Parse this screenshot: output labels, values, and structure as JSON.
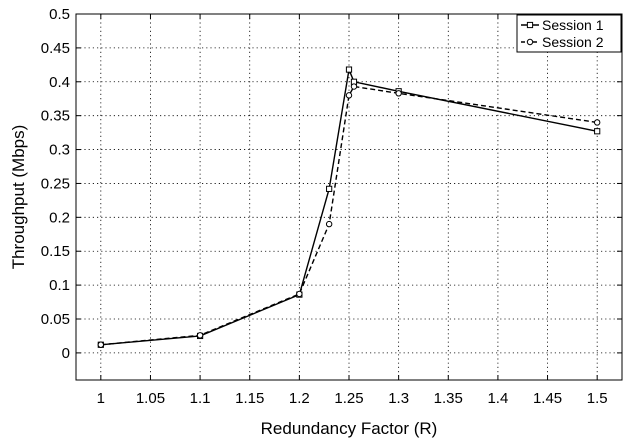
{
  "chart_data": {
    "type": "line",
    "title": "",
    "xlabel": "Redundancy Factor (R)",
    "ylabel": "Throughput (Mbps)",
    "xlim": [
      0.975,
      1.525
    ],
    "ylim": [
      -0.04,
      0.5
    ],
    "xticks": [
      "1",
      "1.05",
      "1.1",
      "1.15",
      "1.2",
      "1.25",
      "1.3",
      "1.35",
      "1.4",
      "1.45",
      "1.5"
    ],
    "yticks": [
      "0",
      "0.05",
      "0.1",
      "0.15",
      "0.2",
      "0.25",
      "0.3",
      "0.35",
      "0.4",
      "0.45",
      "0.5"
    ],
    "grid": true,
    "legend_position": "top-right",
    "series": [
      {
        "name": "Session 1",
        "line_style": "solid",
        "marker": "square",
        "color": "#000000",
        "x": [
          1.0,
          1.1,
          1.2,
          1.23,
          1.25,
          1.255,
          1.3,
          1.5
        ],
        "y": [
          0.012,
          0.025,
          0.086,
          0.242,
          0.418,
          0.4,
          0.386,
          0.327
        ]
      },
      {
        "name": "Session 2",
        "line_style": "dashed",
        "marker": "circle",
        "color": "#000000",
        "x": [
          1.0,
          1.1,
          1.2,
          1.23,
          1.25,
          1.255,
          1.3,
          1.5
        ],
        "y": [
          0.012,
          0.026,
          0.087,
          0.19,
          0.38,
          0.393,
          0.383,
          0.34
        ]
      }
    ]
  }
}
